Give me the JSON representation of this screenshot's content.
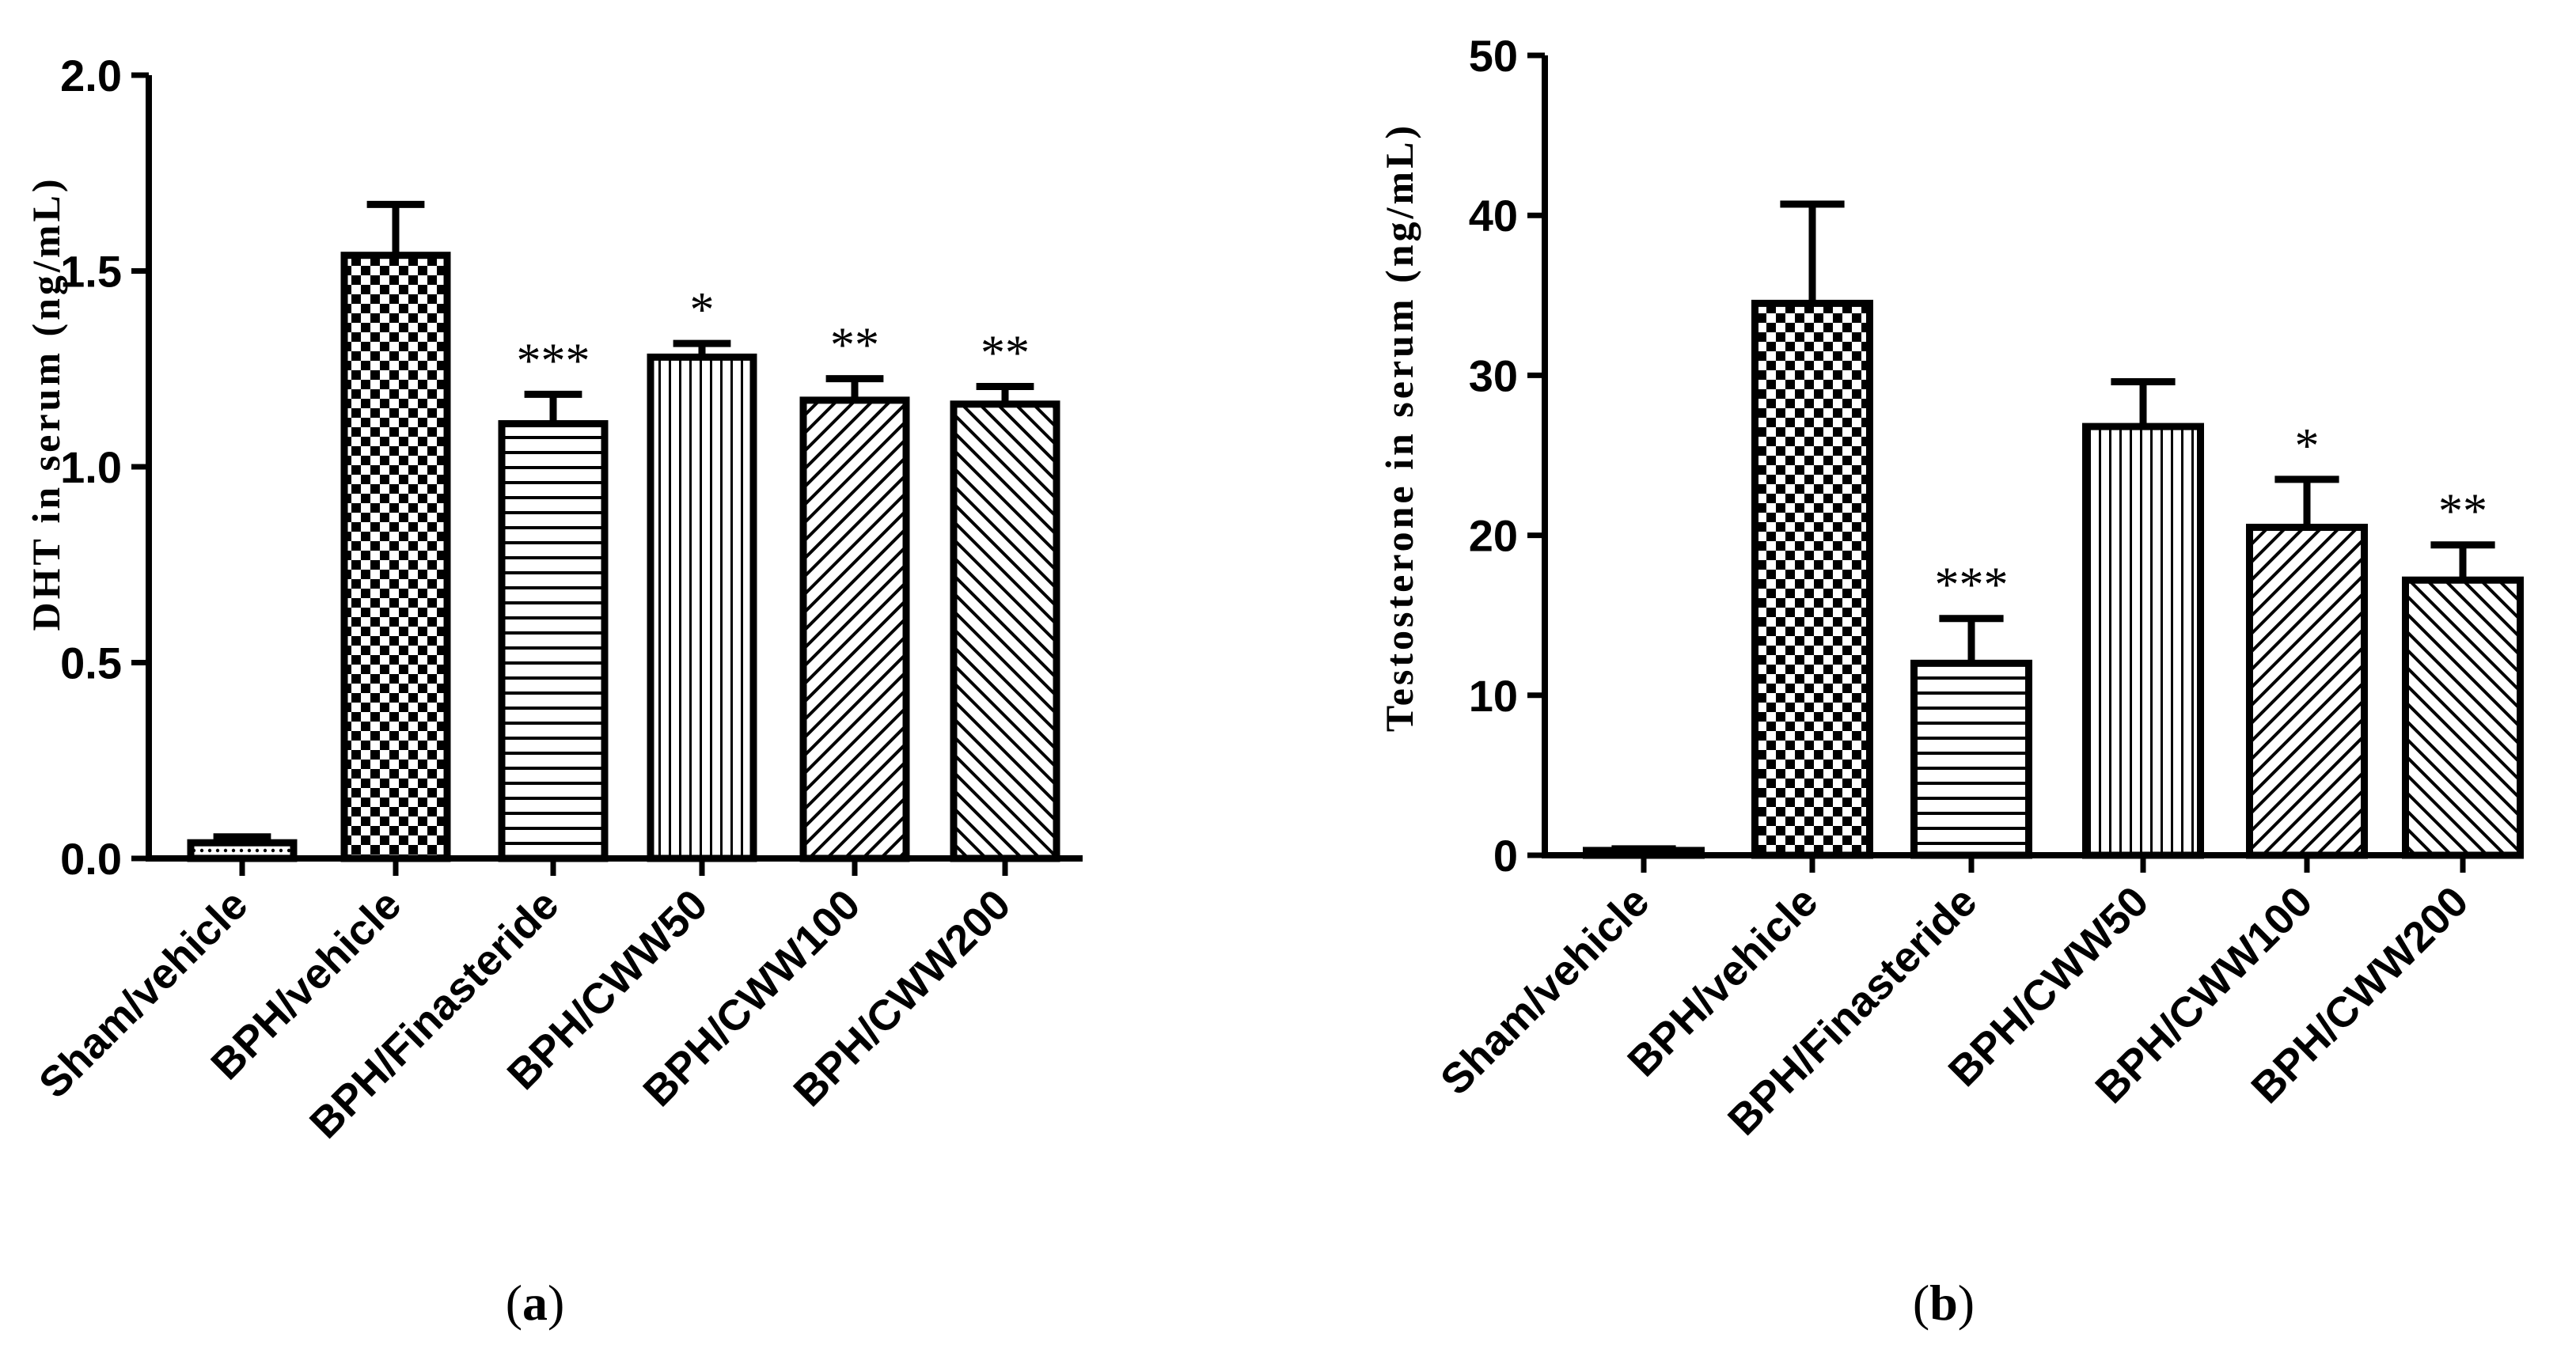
{
  "figure": {
    "captions": [
      {
        "open": "(",
        "letter": "a",
        "close": ")"
      },
      {
        "open": "(",
        "letter": "b",
        "close": ")"
      }
    ]
  },
  "chart_data": [
    {
      "type": "bar",
      "panel": "a",
      "title": "",
      "xlabel": "",
      "ylabel": "DHT in serum (ng/mL)",
      "ylim": [
        0,
        2.0
      ],
      "yticks": [
        0,
        0.5,
        1.0,
        1.5,
        2.0
      ],
      "ytick_labels": [
        "0.0",
        "0.5",
        "1.0",
        "1.5",
        "2.0"
      ],
      "grid": false,
      "categories": [
        "Sham/vehicle",
        "BPH/vehicle",
        "BPH/Finasteride",
        "BPH/CWW50",
        "BPH/CWW100",
        "BPH/CWW200"
      ],
      "values": [
        0.04,
        1.54,
        1.11,
        1.28,
        1.17,
        1.16
      ],
      "errors": [
        0.015,
        0.13,
        0.075,
        0.035,
        0.055,
        0.045
      ],
      "significance": [
        "",
        "",
        "***",
        "*",
        "**",
        "**"
      ],
      "patterns": [
        "dots",
        "checker",
        "hlines",
        "vlines",
        "diag-up",
        "diag-down"
      ]
    },
    {
      "type": "bar",
      "panel": "b",
      "title": "",
      "xlabel": "",
      "ylabel": "Testosterone in serum (ng/mL)",
      "ylim": [
        0,
        50
      ],
      "yticks": [
        0,
        10,
        20,
        30,
        40,
        50
      ],
      "ytick_labels": [
        "0",
        "10",
        "20",
        "30",
        "40",
        "50"
      ],
      "grid": false,
      "categories": [
        "Sham/vehicle",
        "BPH/vehicle",
        "BPH/Finasteride",
        "BPH/CWW50",
        "BPH/CWW100",
        "BPH/CWW200"
      ],
      "values": [
        0.3,
        34.5,
        12.0,
        26.8,
        20.5,
        17.2
      ],
      "errors": [
        0.1,
        6.2,
        2.8,
        2.8,
        3.0,
        2.2
      ],
      "significance": [
        "",
        "",
        "***",
        "",
        "*",
        "**"
      ],
      "patterns": [
        "dots",
        "checker",
        "hlines",
        "vlines",
        "diag-up",
        "diag-down"
      ]
    }
  ]
}
